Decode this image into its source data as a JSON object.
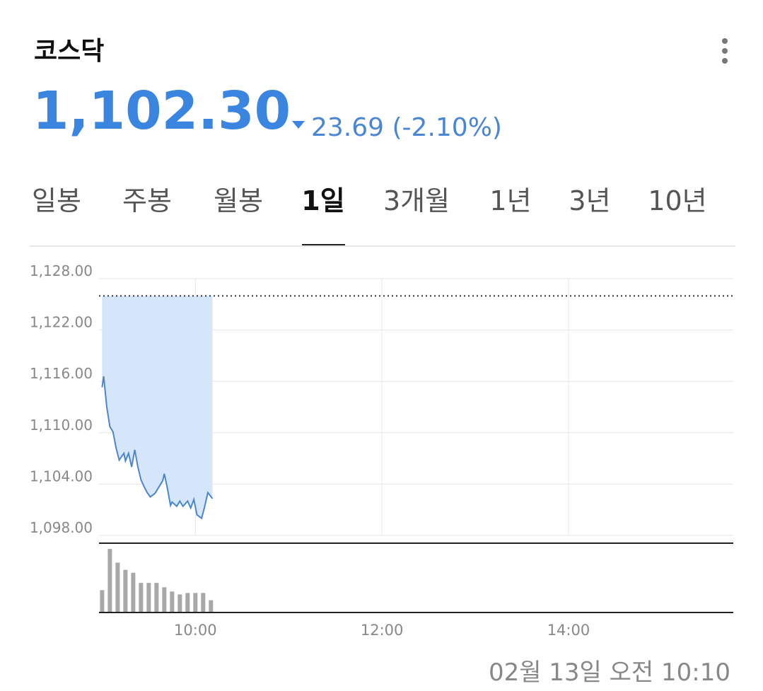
{
  "header": {
    "title": "코스닥",
    "price": "1,102.30",
    "change": "23.69 (-2.10%)"
  },
  "tabs": [
    "일봉",
    "주봉",
    "월봉",
    "1일",
    "3개월",
    "1년",
    "3년",
    "10년"
  ],
  "active_tab": 3,
  "chart_data": {
    "type": "line",
    "color": "#4a86d0",
    "fill_color": "#d5e5fa",
    "x": [
      540,
      541,
      543,
      545,
      547,
      549,
      551,
      554,
      555,
      557,
      559,
      561,
      563,
      565,
      567,
      569,
      571,
      574,
      576,
      579,
      580,
      582,
      584,
      585,
      588,
      590,
      592,
      595,
      597,
      599,
      601,
      604,
      606,
      608,
      611
    ],
    "values": [
      1115.3,
      1116.6,
      1113.0,
      1110.7,
      1110.1,
      1108.2,
      1106.8,
      1107.6,
      1106.7,
      1107.6,
      1106.0,
      1108.0,
      1106.0,
      1104.5,
      1103.7,
      1103.0,
      1102.5,
      1102.9,
      1103.5,
      1104.4,
      1105.2,
      1103.5,
      1101.5,
      1101.9,
      1101.4,
      1102.0,
      1101.4,
      1102.0,
      1101.2,
      1102.2,
      1100.4,
      1100.0,
      1101.4,
      1103.0,
      1102.3
    ],
    "prev_close": 1125.99,
    "ylim": [
      1098,
      1128
    ],
    "yticks": [
      {
        "value": 1128,
        "label": "1,128.00"
      },
      {
        "value": 1122,
        "label": "1,122.00"
      },
      {
        "value": 1116,
        "label": "1,116.00"
      },
      {
        "value": 1110,
        "label": "1,110.00"
      },
      {
        "value": 1104,
        "label": "1,104.00"
      },
      {
        "value": 1098,
        "label": "1,098.00"
      }
    ],
    "xlim": [
      538,
      946
    ],
    "xticks": [
      {
        "value": 600,
        "label": "10:00"
      },
      {
        "value": 720,
        "label": "12:00"
      },
      {
        "value": 840,
        "label": "14:00"
      }
    ],
    "grid": true,
    "volume": {
      "color": "#a8a8a8",
      "x": [
        540,
        545,
        550,
        555,
        560,
        565,
        570,
        575,
        580,
        585,
        590,
        595,
        600,
        605,
        610
      ],
      "values": [
        30,
        87,
        68,
        58,
        54,
        40,
        40,
        40,
        34,
        28,
        24,
        26,
        26,
        26,
        16
      ]
    },
    "timestamp": "02월 13일 오전 10:10"
  }
}
